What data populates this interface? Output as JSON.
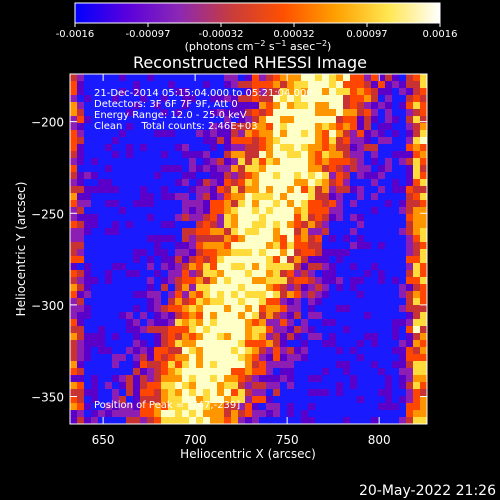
{
  "colors": {
    "background": "#000000",
    "foreground": "#ffffff",
    "colormap": [
      "#1a1aff",
      "#5a00c8",
      "#8c1eb4",
      "#c83232",
      "#ff4600",
      "#ff9600",
      "#ffdc3c",
      "#ffffc8"
    ]
  },
  "colorbar": {
    "ticks": [
      "-0.0016",
      "-0.00097",
      "-0.00032",
      "0.00032",
      "0.00097",
      "0.0016"
    ],
    "range": [
      -0.0016,
      0.0016
    ]
  },
  "chart_data": {
    "type": "heatmap",
    "title": "Reconstructed RHESSI Image",
    "xlabel": "Heliocentric X (arcsec)",
    "ylabel": "Heliocentric Y (arcsec)",
    "xlim": [
      632,
      826
    ],
    "ylim": [
      -365,
      -174
    ],
    "xticks": [
      650,
      700,
      750,
      800
    ],
    "yticks": [
      -200,
      -250,
      -300,
      -350
    ],
    "annotation_lines": [
      "21-Dec-2014 05:15:04.000 to 05:21:04.000",
      "Detectors: 3F 6F 7F 9F, Att 0",
      "Energy Range: 12.0 - 25.0 keV",
      "Clean      Total counts: 2.46E+03"
    ],
    "peak_label": "Position of Peak = [747,-239]",
    "peak": [
      747,
      -239
    ],
    "ridge": {
      "start": [
        698,
        -358
      ],
      "end": [
        768,
        -176
      ],
      "width_arcsec": 60
    },
    "footer": "20-May-2022 21:26"
  }
}
